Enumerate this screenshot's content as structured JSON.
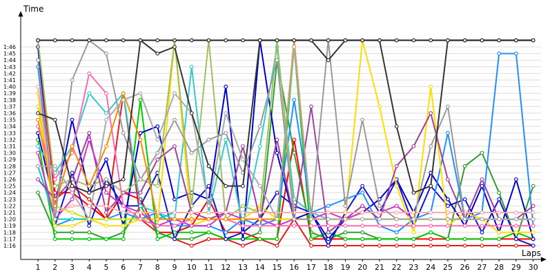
{
  "chart_data": {
    "type": "line",
    "ylabel": "Time",
    "xlabel": "Laps",
    "x": [
      1,
      2,
      3,
      4,
      5,
      6,
      7,
      8,
      9,
      10,
      11,
      12,
      13,
      14,
      15,
      16,
      17,
      18,
      19,
      20,
      21,
      22,
      23,
      24,
      25,
      26,
      27,
      28,
      29,
      30
    ],
    "y_tick_labels": [
      "1:16",
      "1:17",
      "1:18",
      "1:19",
      "1:20",
      "1:21",
      "1:22",
      "1:23",
      "1:24",
      "1:25",
      "1:26",
      "1:27",
      "1:28",
      "1:29",
      "1:30",
      "1:31",
      "1:32",
      "1:33",
      "1:34",
      "1:35",
      "1:36",
      "1:37",
      "1:38",
      "1:39",
      "1:40",
      "1:41",
      "1:42",
      "1:43",
      "1:44",
      "1:45",
      "1:46"
    ],
    "ylim": [
      75.5,
      106.5
    ],
    "grid": "horizontal",
    "series": [
      {
        "color": "#e41a1c",
        "values": [
          107,
          83,
          85,
          83,
          80,
          99,
          80,
          78,
          77,
          76,
          77,
          77,
          76,
          77,
          76,
          80,
          76,
          76,
          76,
          76,
          76,
          76,
          76,
          76,
          76,
          76,
          76,
          76,
          76,
          76
        ]
      },
      {
        "color": "#ff0000",
        "values": [
          107,
          84,
          84,
          82,
          80,
          84,
          83,
          78,
          78,
          79,
          83,
          78,
          78,
          77,
          77,
          92,
          77,
          77,
          77,
          77,
          77,
          77,
          77,
          77,
          77,
          77,
          77,
          77,
          77,
          77
        ]
      },
      {
        "color": "#2e9e2e",
        "values": [
          84,
          78,
          78,
          78,
          77,
          78,
          82,
          78,
          77,
          77,
          78,
          77,
          77,
          78,
          104,
          90,
          78,
          77,
          78,
          78,
          77,
          77,
          77,
          78,
          77,
          88,
          90,
          84,
          77,
          85
        ]
      },
      {
        "color": "#00cc00",
        "values": [
          92,
          77,
          77,
          77,
          77,
          77,
          98,
          77,
          78,
          78,
          78,
          77,
          77,
          77,
          77,
          106,
          77,
          78,
          77,
          77,
          77,
          77,
          77,
          78,
          77,
          77,
          77,
          77,
          78,
          77
        ]
      },
      {
        "color": "#0000cc",
        "values": [
          93,
          82,
          95,
          84,
          89,
          79,
          93,
          94,
          83,
          84,
          83,
          100,
          77,
          107,
          90,
          80,
          81,
          77,
          80,
          81,
          83,
          86,
          81,
          87,
          83,
          79,
          85,
          78,
          86,
          77
        ]
      },
      {
        "color": "#1515d0",
        "values": [
          106,
          79,
          87,
          79,
          86,
          82,
          82,
          87,
          77,
          82,
          85,
          77,
          78,
          80,
          84,
          82,
          81,
          76,
          81,
          85,
          81,
          86,
          79,
          85,
          82,
          83,
          78,
          83,
          77,
          76
        ]
      },
      {
        "color": "#1e90ff",
        "values": [
          103,
          79,
          80,
          80,
          80,
          81,
          80,
          81,
          79,
          79,
          79,
          78,
          80,
          79,
          80,
          98,
          81,
          82,
          83,
          84,
          79,
          78,
          80,
          81,
          93,
          80,
          81,
          105,
          105,
          79
        ]
      },
      {
        "color": "#33cccc",
        "values": [
          91,
          87,
          91,
          99,
          96,
          99,
          82,
          81,
          80,
          103,
          81,
          92,
          79,
          91,
          106,
          83,
          81,
          80,
          80,
          80,
          80,
          80,
          80,
          80,
          80,
          80,
          80,
          80,
          80,
          80
        ]
      },
      {
        "color": "#00cccc",
        "values": [
          88,
          80,
          80,
          80,
          80,
          80,
          80,
          80,
          81,
          81,
          81,
          81,
          81,
          81,
          81,
          81,
          81,
          81,
          81,
          81,
          81,
          81,
          81,
          81,
          81,
          81,
          81,
          81,
          81,
          81
        ]
      },
      {
        "color": "#ffdd00",
        "values": [
          99,
          79,
          79,
          80,
          79,
          79,
          80,
          79,
          107,
          79,
          80,
          80,
          80,
          82,
          80,
          80,
          80,
          80,
          80,
          107,
          97,
          85,
          78,
          100,
          79,
          81,
          80,
          78,
          78,
          78
        ]
      },
      {
        "color": "#dddd00",
        "values": [
          97,
          82,
          81,
          80,
          80,
          80,
          80,
          80,
          80,
          80,
          80,
          80,
          80,
          80,
          80,
          80,
          80,
          80,
          80,
          80,
          80,
          80,
          80,
          80,
          80,
          80,
          80,
          80,
          80,
          80
        ]
      },
      {
        "color": "#a0c060",
        "values": [
          107,
          85,
          86,
          85,
          86,
          84,
          86,
          85,
          107,
          82,
          107,
          80,
          82,
          81,
          107,
          81,
          81,
          81,
          81,
          81,
          81,
          81,
          81,
          81,
          81,
          81,
          81,
          81,
          81,
          81
        ]
      },
      {
        "color": "#a040a0",
        "values": [
          86,
          83,
          86,
          93,
          81,
          84,
          84,
          89,
          91,
          81,
          80,
          81,
          91,
          80,
          92,
          80,
          97,
          78,
          80,
          82,
          80,
          88,
          91,
          96,
          86,
          80,
          86,
          80,
          80,
          82
        ]
      },
      {
        "color": "#cc33cc",
        "values": [
          90,
          80,
          83,
          92,
          84,
          82,
          81,
          79,
          80,
          79,
          79,
          81,
          80,
          80,
          79,
          80,
          80,
          81,
          80,
          81,
          81,
          82,
          80,
          80,
          80,
          80,
          80,
          80,
          80,
          80
        ]
      },
      {
        "color": "#ff69b4",
        "values": [
          94,
          86,
          90,
          102,
          99,
          82,
          80,
          79,
          79,
          80,
          80,
          80,
          79,
          79,
          79,
          79,
          79,
          79,
          79,
          79,
          79,
          79,
          79,
          79,
          79,
          79,
          79,
          79,
          79,
          79
        ]
      },
      {
        "color": "#ffaaaa",
        "values": [
          100,
          81,
          82,
          82,
          82,
          81,
          81,
          81,
          81,
          81,
          81,
          81,
          81,
          81,
          81,
          81,
          81,
          81,
          81,
          81,
          81,
          81,
          81,
          81,
          81,
          81,
          81,
          81,
          81,
          81
        ]
      },
      {
        "color": "#ff8800",
        "values": [
          95,
          82,
          91,
          85,
          91,
          99,
          92,
          80,
          80,
          80,
          80,
          80,
          80,
          80,
          80,
          107,
          80,
          80,
          80,
          80,
          80,
          80,
          80,
          80,
          80,
          80,
          80,
          80,
          80,
          80
        ]
      },
      {
        "color": "#999999",
        "values": [
          104,
          80,
          101,
          107,
          105,
          93,
          86,
          90,
          95,
          90,
          92,
          93,
          87,
          94,
          104,
          80,
          80,
          107,
          82,
          95,
          82,
          80,
          80,
          91,
          97,
          80,
          80,
          80,
          80,
          80
        ]
      },
      {
        "color": "#aaaaaa",
        "values": [
          88,
          88,
          84,
          80,
          95,
          98,
          99,
          92,
          99,
          96,
          82,
          96,
          89,
          85,
          80,
          106,
          80,
          80,
          80,
          80,
          80,
          80,
          80,
          80,
          80,
          80,
          80,
          80,
          80,
          80
        ]
      },
      {
        "color": "#333333",
        "values": [
          96,
          95,
          85,
          84,
          85,
          86,
          107,
          105,
          106,
          96,
          88,
          85,
          85,
          107,
          107,
          107,
          107,
          104,
          107,
          107,
          107,
          94,
          84,
          85,
          107,
          107,
          107,
          107,
          107,
          107
        ]
      },
      {
        "color": "#222222",
        "values": [
          107,
          107,
          107,
          107,
          107,
          107,
          107,
          107,
          107,
          107,
          107,
          107,
          107,
          107,
          107,
          107,
          107,
          107,
          107,
          107,
          107,
          107,
          107,
          107,
          107,
          107,
          107,
          107,
          107,
          107
        ]
      }
    ]
  }
}
